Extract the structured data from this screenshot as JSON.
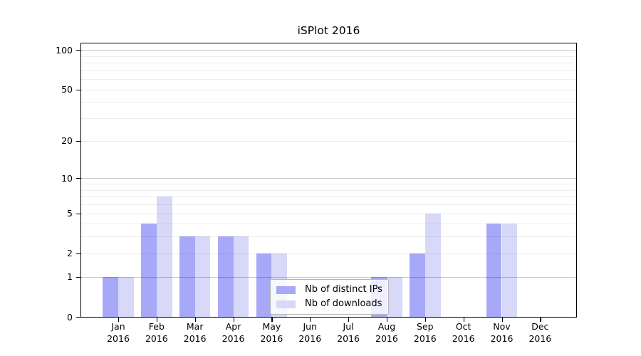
{
  "chart_data": {
    "type": "bar",
    "title": "iSPlot 2016",
    "x_categories": [
      "Jan",
      "Feb",
      "Mar",
      "Apr",
      "May",
      "Jun",
      "Jul",
      "Aug",
      "Sep",
      "Oct",
      "Nov",
      "Dec"
    ],
    "x_year": "2016",
    "series": [
      {
        "name": "Nb of distinct IPs",
        "color": "#a8a8f8",
        "values": [
          1,
          4,
          3,
          3,
          2,
          0,
          0,
          1,
          2,
          0,
          4,
          0
        ]
      },
      {
        "name": "Nb of downloads",
        "color": "#d8d8f8",
        "values": [
          1,
          7,
          3,
          3,
          2,
          0,
          0,
          1,
          5,
          0,
          4,
          0
        ]
      }
    ],
    "y_scale": "log10(1+x)",
    "y_ticks": [
      100,
      50,
      20,
      10,
      5,
      2,
      1,
      0
    ],
    "y_major_gridlines": [
      100,
      10,
      1
    ],
    "y_minor_gridlines": [
      2,
      3,
      4,
      5,
      6,
      7,
      8,
      9,
      20,
      30,
      40,
      50,
      60,
      70,
      80,
      90
    ],
    "ylim": [
      0,
      114
    ],
    "grid": true,
    "legend_position": "bottom-center"
  },
  "colors": {
    "bar_distinct_ips": "#a8a8f8",
    "bar_downloads": "#d8d8f8",
    "axis": "#000000",
    "grid_major": "rgba(0,0,0,0.22)",
    "grid_minor": "rgba(0,0,0,0.07)",
    "legend_background": "rgba(255,255,255,0.8)"
  }
}
